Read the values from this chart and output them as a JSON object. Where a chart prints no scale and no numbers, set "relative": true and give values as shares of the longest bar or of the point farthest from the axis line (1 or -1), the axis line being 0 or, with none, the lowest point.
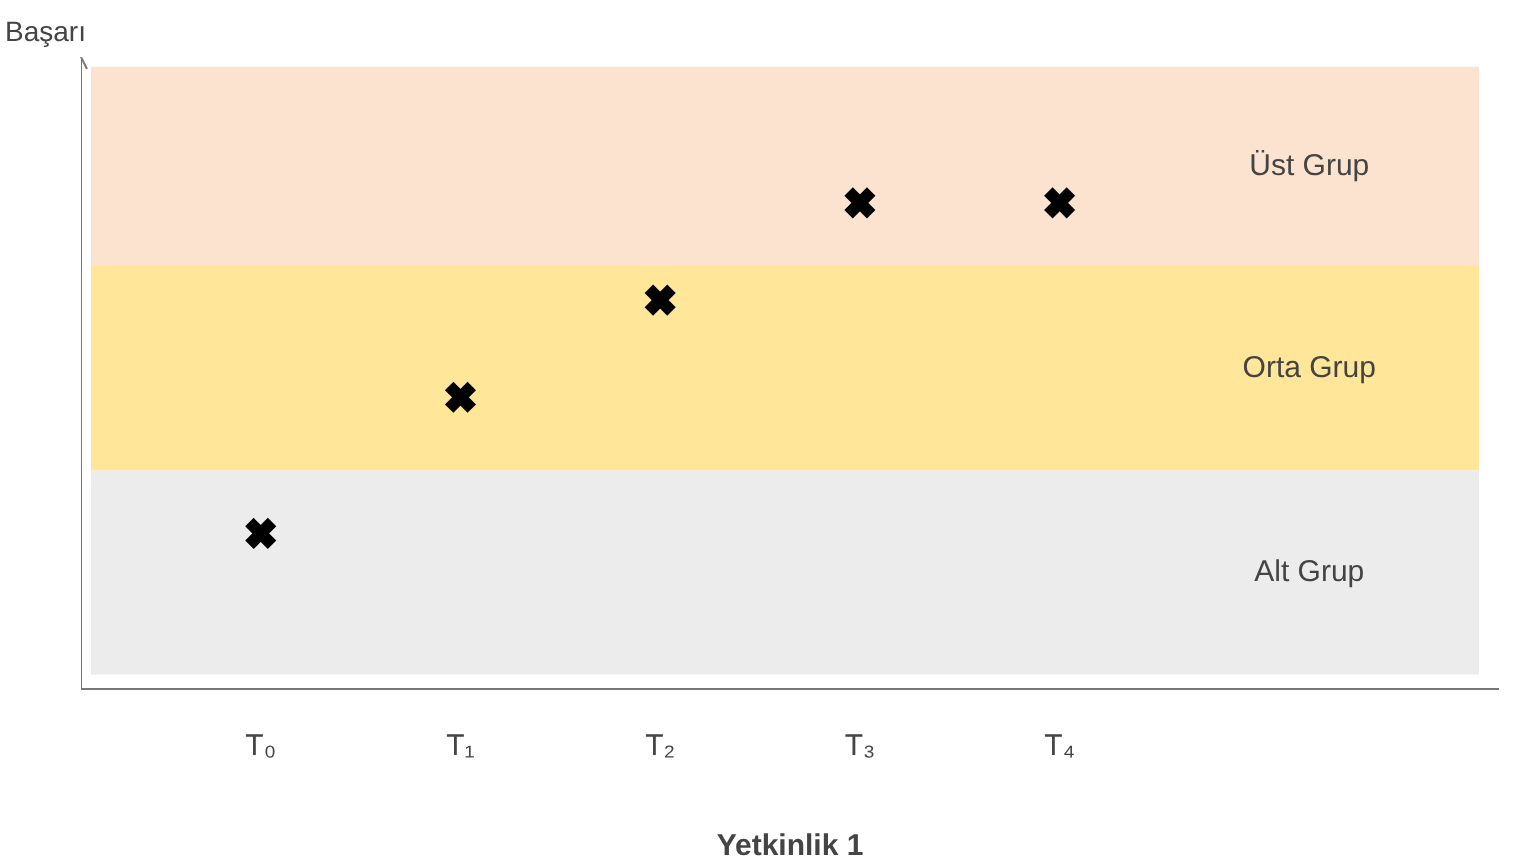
{
  "chart_data": {
    "type": "scatter",
    "relative": true,
    "annotations": [
      "Başarı"
    ],
    "xlabel": "Yetkinlik 1",
    "categories": [
      "T₀",
      "T₁",
      "T₂",
      "T₃",
      "T₄"
    ],
    "series": [
      {
        "color": "#000000",
        "values": [
          0.32,
          0.6,
          0.8,
          1,
          1
        ]
      }
    ],
    "marker": "cross",
    "grid": false,
    "bands": [
      {
        "axis": "y",
        "from": 0.03,
        "to": 0.45,
        "label": "Alt Grup",
        "color": "#ececec"
      },
      {
        "axis": "y",
        "from": 0.45,
        "to": 0.87,
        "label": "Orta Grup",
        "color": "#ffe699"
      },
      {
        "axis": "y",
        "from": 0.87,
        "to": 1.28,
        "label": "Üst Grup",
        "color": "#fbe3d0"
      }
    ]
  }
}
